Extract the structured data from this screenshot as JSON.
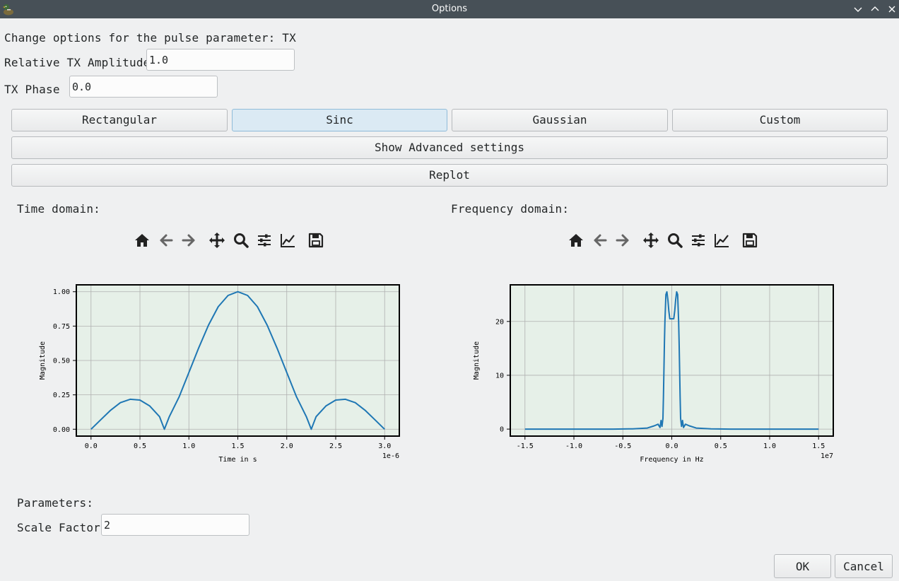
{
  "window": {
    "title": "Options",
    "app_icon": "duck-icon",
    "controls": [
      "minimize-icon",
      "maximize-icon",
      "close-icon"
    ]
  },
  "header": {
    "description": "Change options for the pulse parameter: TX",
    "amplitude_label": "Relative TX Amplitude",
    "amplitude_value": "1.0",
    "phase_label": "TX Phase",
    "phase_value": "0.0"
  },
  "shape_buttons": {
    "rectangular": "Rectangular",
    "sinc": "Sinc",
    "gaussian": "Gaussian",
    "custom": "Custom",
    "selected": "Sinc"
  },
  "advanced_button": "Show Advanced settings",
  "replot_button": "Replot",
  "toolbar_icons": [
    "home-icon",
    "back-arrow-icon",
    "forward-arrow-icon",
    "pan-icon",
    "zoom-icon",
    "subplots-config-icon",
    "edit-axis-icon",
    "save-icon"
  ],
  "time_domain": {
    "label": "Time domain:"
  },
  "frequency_domain": {
    "label": "Frequency domain:"
  },
  "parameters": {
    "label": "Parameters:",
    "scale_factor_label": "Scale Factor",
    "scale_factor_value": "2"
  },
  "footer": {
    "ok": "OK",
    "cancel": "Cancel"
  },
  "colors": {
    "line": "#1f77b4",
    "plot_bg": "#e6f0e8",
    "titlebar": "#475057",
    "selected_button": "#dbeaf4"
  },
  "chart_data": [
    {
      "type": "line",
      "title": "",
      "xlabel": "Time in s",
      "ylabel": "Magnitude",
      "x_offset_label": "1e-6",
      "xlim": [
        -0.15,
        3.15
      ],
      "ylim": [
        -0.05,
        1.05
      ],
      "xticks": [
        0.0,
        0.5,
        1.0,
        1.5,
        2.0,
        2.5,
        3.0
      ],
      "xtick_labels": [
        "0.0",
        "0.5",
        "1.0",
        "1.5",
        "2.0",
        "2.5",
        "3.0"
      ],
      "yticks": [
        0.0,
        0.25,
        0.5,
        0.75,
        1.0
      ],
      "ytick_labels": [
        "0.00",
        "0.25",
        "0.50",
        "0.75",
        "1.00"
      ],
      "grid": true,
      "series": [
        {
          "x": [
            0.0,
            0.1,
            0.2,
            0.3,
            0.4,
            0.5,
            0.6,
            0.7,
            0.75,
            0.8,
            0.9,
            1.0,
            1.1,
            1.2,
            1.3,
            1.4,
            1.5,
            1.6,
            1.7,
            1.8,
            1.9,
            2.0,
            2.1,
            2.2,
            2.25,
            2.3,
            2.4,
            2.5,
            2.6,
            2.7,
            2.8,
            2.9,
            3.0
          ],
          "y": [
            0.0,
            0.069,
            0.138,
            0.193,
            0.218,
            0.212,
            0.169,
            0.092,
            0.0,
            0.092,
            0.235,
            0.413,
            0.591,
            0.757,
            0.891,
            0.973,
            1.0,
            0.973,
            0.891,
            0.757,
            0.591,
            0.413,
            0.235,
            0.092,
            0.0,
            0.092,
            0.169,
            0.212,
            0.218,
            0.193,
            0.138,
            0.069,
            0.0
          ]
        }
      ]
    },
    {
      "type": "line",
      "title": "",
      "xlabel": "Frequency in Hz",
      "ylabel": "Magnitude",
      "x_offset_label": "1e7",
      "xlim": [
        -1.65,
        1.65
      ],
      "ylim": [
        -1.3,
        26.8
      ],
      "xticks": [
        -1.5,
        -1.0,
        -0.5,
        0.0,
        0.5,
        1.0,
        1.5
      ],
      "xtick_labels": [
        "-1.5",
        "-1.0",
        "-0.5",
        "0.0",
        "0.5",
        "1.0",
        "1.5"
      ],
      "yticks": [
        0,
        10,
        20
      ],
      "ytick_labels": [
        "0",
        "10",
        "20"
      ],
      "grid": true,
      "series": [
        {
          "x": [
            -1.5,
            -0.6,
            -0.4,
            -0.25,
            -0.18,
            -0.14,
            -0.12,
            -0.11,
            -0.1,
            -0.09,
            -0.085,
            -0.08,
            -0.075,
            -0.07,
            -0.06,
            -0.05,
            -0.04,
            -0.03,
            -0.02,
            0.0,
            0.02,
            0.03,
            0.04,
            0.05,
            0.06,
            0.07,
            0.075,
            0.08,
            0.085,
            0.09,
            0.1,
            0.11,
            0.12,
            0.14,
            0.18,
            0.25,
            0.4,
            0.6,
            1.5
          ],
          "y": [
            0.0,
            0.0,
            0.05,
            0.2,
            0.6,
            0.9,
            0.3,
            1.6,
            0.5,
            2.0,
            6.0,
            11.0,
            16.0,
            20.0,
            25.0,
            25.5,
            24.0,
            22.0,
            20.5,
            20.5,
            20.5,
            22.0,
            24.0,
            25.5,
            25.0,
            20.0,
            16.0,
            11.0,
            6.0,
            2.0,
            0.5,
            1.6,
            0.3,
            0.9,
            0.6,
            0.2,
            0.05,
            0.0,
            0.0
          ]
        }
      ]
    }
  ]
}
